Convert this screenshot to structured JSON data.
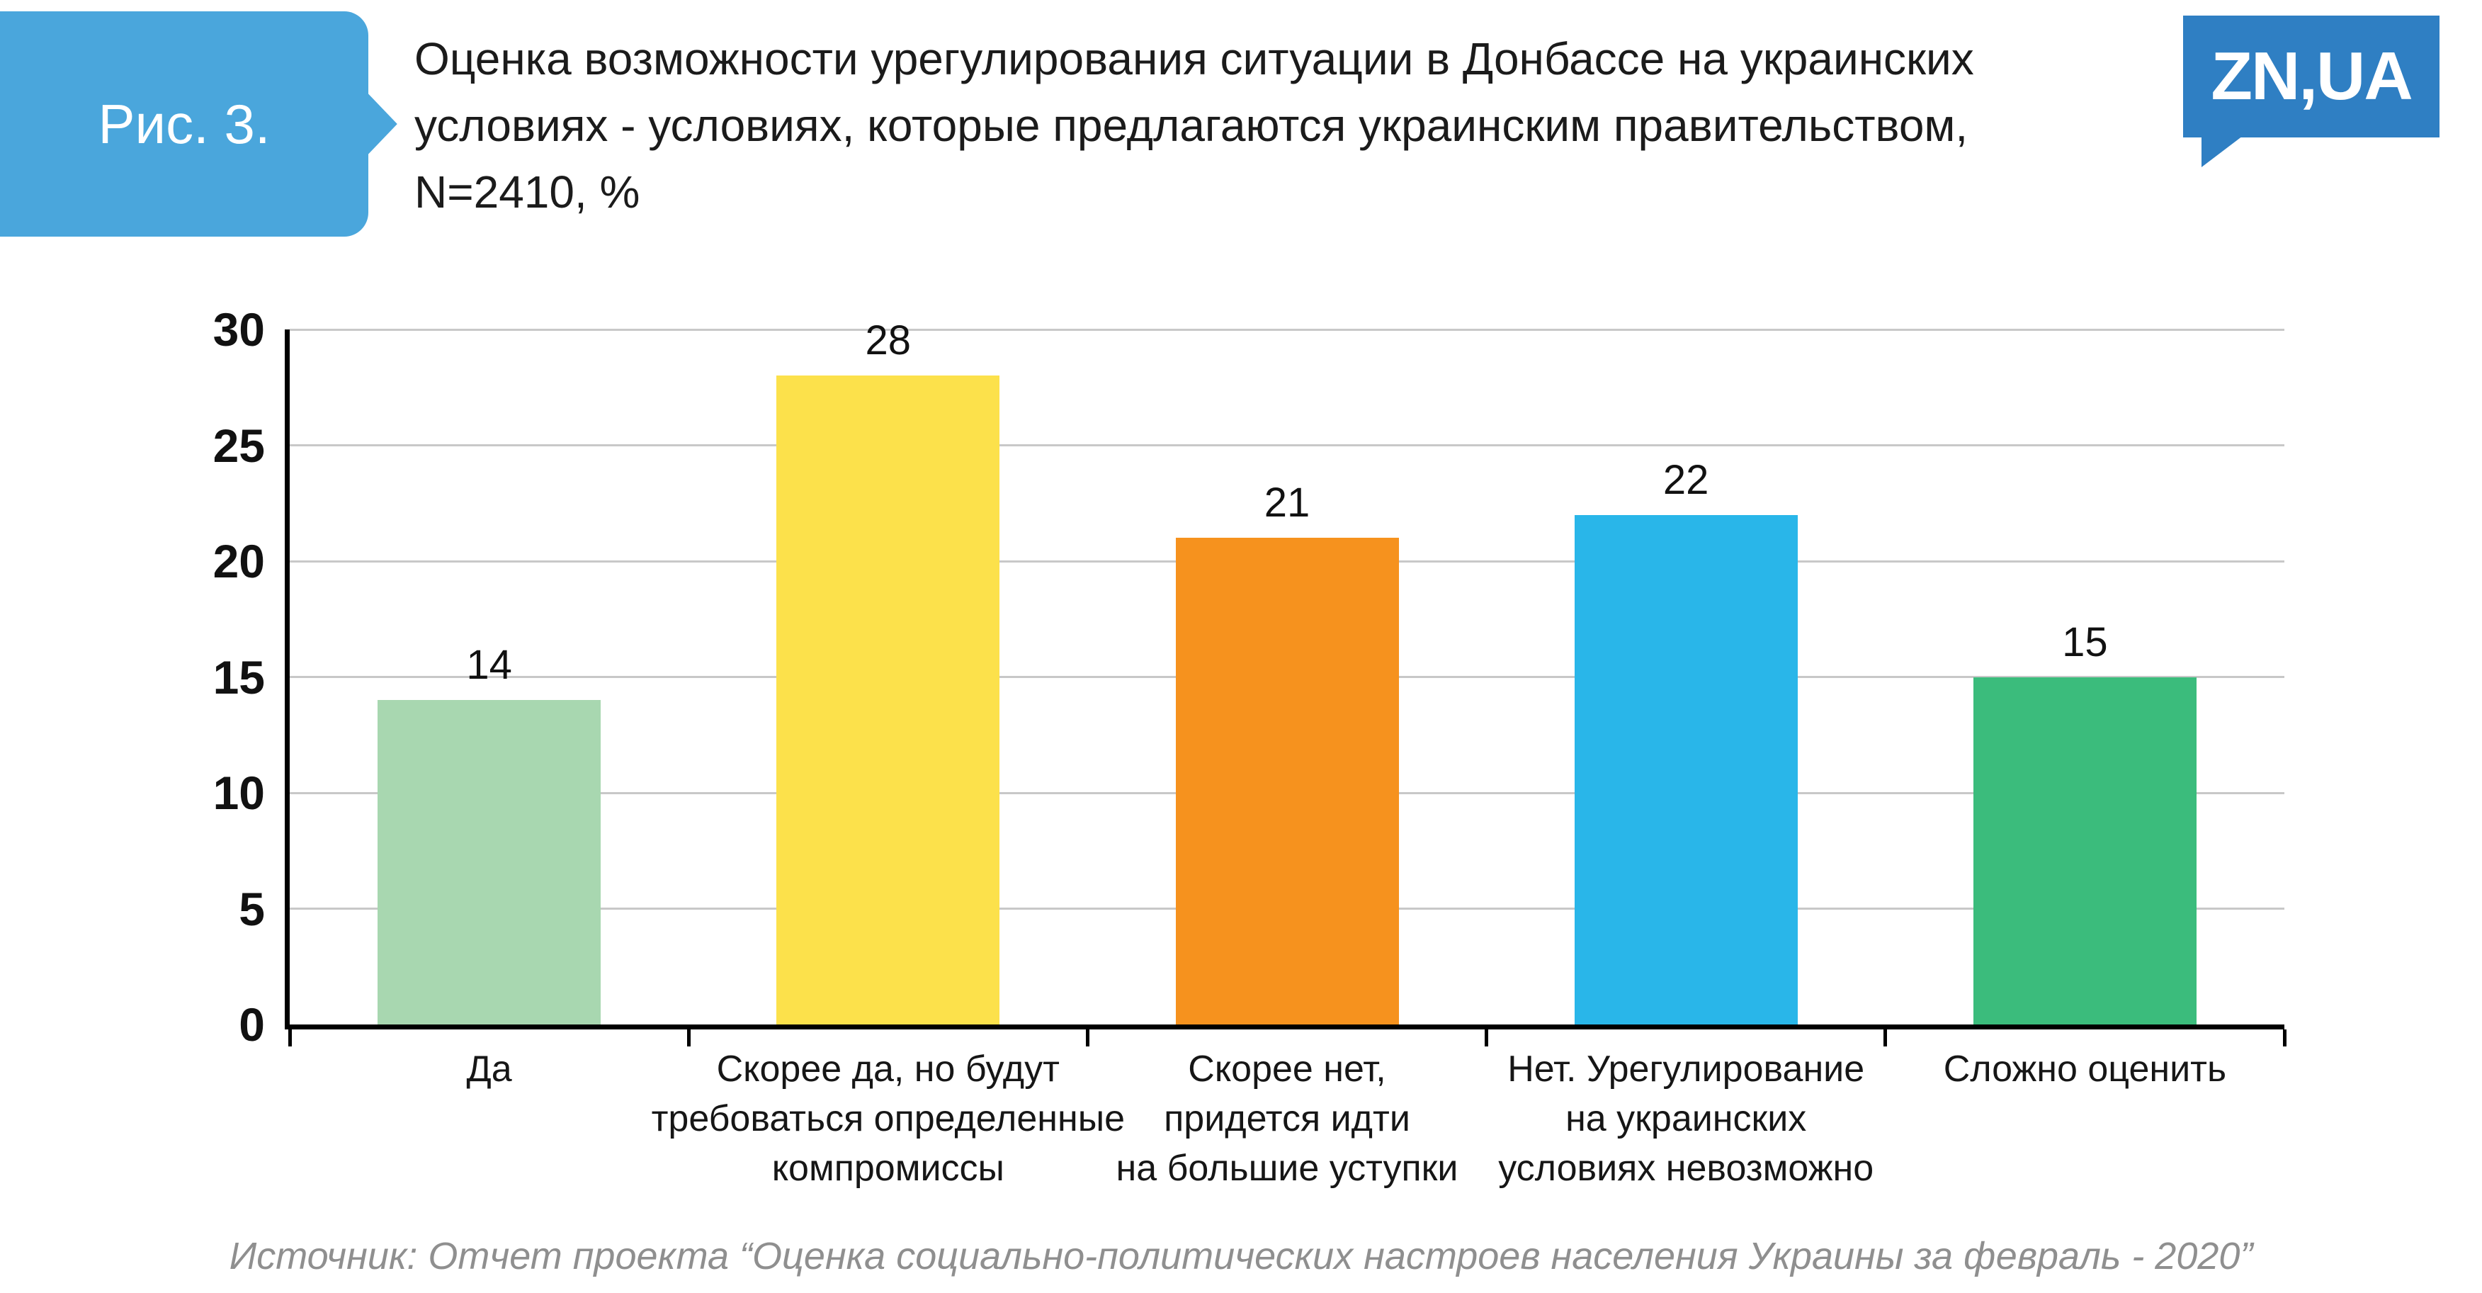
{
  "header": {
    "figure_label": "Рис. 3.",
    "title": "Оценка возможности урегулирования ситуации в Донбассе на украинских\nусловиях - условиях, которые предлагаются украинским правительством,\nN=2410, %",
    "logo_text": "ZN,UA"
  },
  "chart_data": {
    "type": "bar",
    "title": "Оценка возможности урегулирования ситуации в Донбассе на украинских условиях - условиях, которые предлагаются украинским правительством, N=2410, %",
    "categories": [
      "Да",
      "Скорее да, но будут\nтребоваться определенные\nкомпромиссы",
      "Скорее нет,\nпридется идти\nна большие уступки",
      "Нет. Урегулирование\nна украинских\nусловиях невозможно",
      "Сложно оценить"
    ],
    "values": [
      14,
      28,
      21,
      22,
      15
    ],
    "bar_colors": [
      "#a8d7b0",
      "#fce14b",
      "#f6921e",
      "#29b6e9",
      "#3bbc7c"
    ],
    "xlabel": "",
    "ylabel": "",
    "ylim": [
      0,
      30
    ],
    "yticks": [
      0,
      5,
      10,
      15,
      20,
      25,
      30
    ],
    "grid": true,
    "legend": false,
    "accent_colors": {
      "badge_blue": "#4aa6dc",
      "logo_blue": "#2f7fc3",
      "gridline_gray": "#c8c8c8"
    }
  },
  "footer": {
    "source": "Источник: Отчет проекта “Оценка социально-политических настроев населения Украины за февраль - 2020”"
  }
}
